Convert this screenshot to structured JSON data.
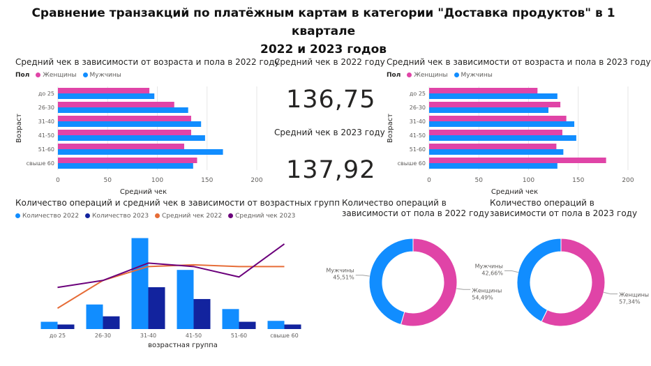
{
  "title": {
    "line1": "Сравнение транзакций по платёжным картам в категории \"Доставка продуктов\" в 1 квартале",
    "line2": "2022 и 2023 годов"
  },
  "colors": {
    "women": "#E044A7",
    "men": "#118DFF",
    "count2022": "#118DFF",
    "count2023": "#12239E",
    "avg2022": "#E66C37",
    "avg2023": "#6B007B"
  },
  "cards": [
    {
      "label": "Средний чек в 2022 году",
      "value": "136,75"
    },
    {
      "label": "Средний чек в 2023 году",
      "value": "137,92"
    }
  ],
  "chart_data": [
    {
      "id": "avg-by-age-2022",
      "type": "bar",
      "orientation": "horizontal",
      "title": "Средний чек в зависимости от возраста и пола в 2022 году",
      "legend_title": "Пол",
      "categories": [
        "до 25",
        "26-30",
        "31-40",
        "41-50",
        "51-60",
        "свыше 60"
      ],
      "series": [
        {
          "name": "Женщины",
          "values": [
            92,
            117,
            134,
            134,
            127,
            140
          ]
        },
        {
          "name": "Мужчины",
          "values": [
            97,
            131,
            144,
            148,
            166,
            136
          ]
        }
      ],
      "xlabel": "Средний чек",
      "ylabel": "Возраст",
      "xlim": [
        0,
        200
      ],
      "xticks": [
        "0",
        "50",
        "100",
        "150",
        "200"
      ]
    },
    {
      "id": "avg-by-age-2023",
      "type": "bar",
      "orientation": "horizontal",
      "title": "Средний чек в зависимости от возраста и пола в 2023 году",
      "legend_title": "Пол",
      "categories": [
        "до 25",
        "26-30",
        "31-40",
        "41-50",
        "51-60",
        "свыше 60"
      ],
      "series": [
        {
          "name": "Женщины",
          "values": [
            109,
            132,
            138,
            134,
            128,
            178
          ]
        },
        {
          "name": "Мужчины",
          "values": [
            129,
            120,
            146,
            148,
            135,
            129
          ]
        }
      ],
      "xlabel": "Средний чек",
      "ylabel": "Возраст",
      "xlim": [
        0,
        200
      ],
      "xticks": [
        "0",
        "50",
        "100",
        "150",
        "200"
      ]
    },
    {
      "id": "ops-by-age",
      "type": "bar",
      "title": "Количество операций и средний чек в зависимости от возрастных групп",
      "categories": [
        "до 25",
        "26-30",
        "31-40",
        "41-50",
        "51-60",
        "свыше 60"
      ],
      "series": [
        {
          "name": "Количество 2022",
          "kind": "bar",
          "values": [
            8,
            27,
            100,
            65,
            22,
            9
          ]
        },
        {
          "name": "Количество 2023",
          "kind": "bar",
          "values": [
            5,
            14,
            46,
            33,
            8,
            5
          ]
        },
        {
          "name": "Средний чек 2022",
          "kind": "line",
          "values": [
            112,
            128,
            136,
            137,
            136,
            136
          ]
        },
        {
          "name": "Средний чек 2023",
          "kind": "line",
          "values": [
            124,
            128,
            138,
            136,
            130,
            149
          ]
        }
      ],
      "xlabel": "возрастная группа",
      "ylim_count": [
        0,
        105
      ],
      "ylim_avg": [
        100,
        155
      ]
    },
    {
      "id": "gender-2022",
      "type": "pie",
      "donut": true,
      "title_lines": [
        "Количество операций в",
        "зависимости от пола в 2022 году"
      ],
      "slices": [
        {
          "name": "Мужчины",
          "value": 45.51,
          "label": "45,51%"
        },
        {
          "name": "Женщины",
          "value": 54.49,
          "label": "54,49%"
        }
      ]
    },
    {
      "id": "gender-2023",
      "type": "pie",
      "donut": true,
      "title_lines": [
        "Количество операций в",
        "зависимости от пола в 2023 году"
      ],
      "slices": [
        {
          "name": "Мужчины",
          "value": 42.66,
          "label": "42,66%"
        },
        {
          "name": "Женщины",
          "value": 57.34,
          "label": "57,34%"
        }
      ]
    }
  ]
}
